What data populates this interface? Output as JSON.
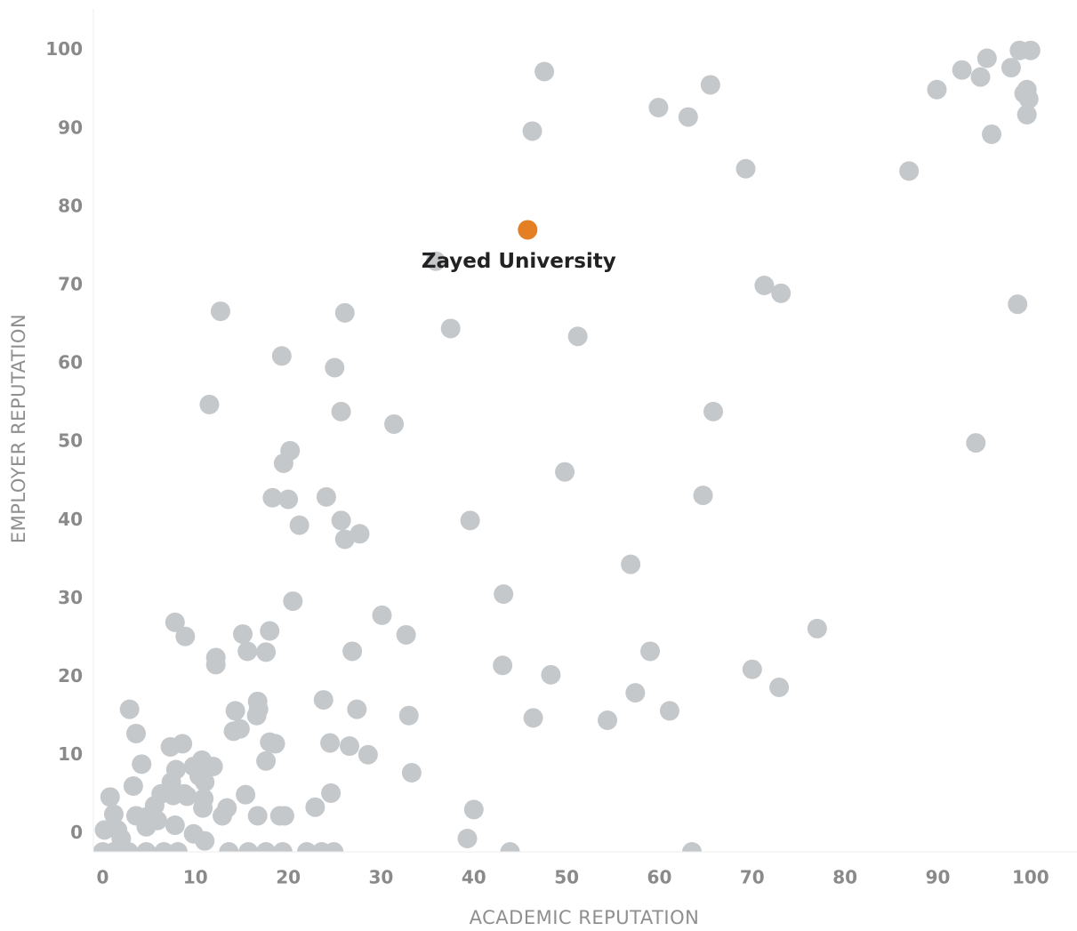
{
  "chart_data": {
    "type": "scatter",
    "x_label": "ACADEMIC REPUTATION",
    "y_label": "EMPLOYER REPUTATION",
    "color": "#c5c8cb",
    "xlim": [
      -1,
      105
    ],
    "ylim": [
      -2.3,
      105.3
    ],
    "xticks": [
      0,
      10,
      20,
      30,
      40,
      50,
      60,
      70,
      80,
      90,
      100
    ],
    "yticks": [
      0,
      10,
      20,
      30,
      40,
      50,
      60,
      70,
      80,
      90,
      100
    ],
    "grid": false,
    "x": [
      98.8,
      100,
      95.3,
      92.6,
      94.6,
      97.9,
      89.9,
      99.3,
      99.6,
      99.8,
      99.6,
      95.8,
      86.9,
      69.3,
      65.5,
      63.1,
      59.9,
      47.6,
      46.3,
      35.9,
      71.3,
      73.1,
      98.6,
      12.7,
      26.1,
      37.5,
      51.2,
      19.3,
      25,
      11.5,
      25.7,
      65.8,
      31.4,
      94.1,
      20.2,
      19.5,
      49.8,
      18.3,
      20,
      24.1,
      64.7,
      25.7,
      21.2,
      39.6,
      26.1,
      27.7,
      56.9,
      43.2,
      20.5,
      30.1,
      7.8,
      77,
      8.9,
      15.1,
      18,
      32.7,
      12.2,
      12.2,
      15.6,
      17.6,
      26.9,
      59,
      43.1,
      48.3,
      70,
      72.9,
      57.4,
      16.7,
      23.8,
      2.9,
      14.3,
      16.8,
      27.4,
      61.1,
      16.6,
      33,
      46.4,
      54.4,
      3.6,
      14.8,
      14.1,
      18,
      18.6,
      24.5,
      26.6,
      7.3,
      8.6,
      28.6,
      17.6,
      4.2,
      10.7,
      11.9,
      7.9,
      9.8,
      33.3,
      10.4,
      7.4,
      3.3,
      11,
      6.3,
      8.8,
      9.1,
      7.6,
      15.4,
      24.6,
      0.8,
      10.9,
      5.6,
      10.8,
      13.4,
      22.9,
      40,
      1.2,
      3.6,
      4.8,
      16.7,
      19.1,
      19.6,
      12.9,
      5.9,
      7.8,
      4.7,
      0.2,
      1.6,
      9.8,
      2,
      11,
      39.3,
      0,
      1.2,
      2.8,
      4.7,
      6.6,
      8.1,
      13.6,
      15.7,
      17.6,
      19.4,
      22,
      23.6,
      24.9,
      43.9,
      63.5
    ],
    "values": [
      100,
      100,
      99,
      97.5,
      96.6,
      97.8,
      95,
      94.5,
      95,
      93.8,
      91.8,
      89.3,
      84.6,
      84.9,
      95.6,
      91.5,
      92.7,
      97.3,
      89.7,
      73.1,
      70,
      69,
      67.6,
      66.7,
      66.5,
      64.5,
      63.5,
      61,
      59.5,
      54.8,
      53.9,
      53.9,
      52.3,
      49.9,
      48.9,
      47.3,
      46.2,
      42.9,
      42.7,
      43,
      43.2,
      40,
      39.4,
      40,
      37.6,
      38.3,
      34.4,
      30.6,
      29.7,
      27.9,
      27,
      26.2,
      25.2,
      25.5,
      25.9,
      25.4,
      22.5,
      21.6,
      23.3,
      23.2,
      23.3,
      23.3,
      21.5,
      20.3,
      21,
      18.7,
      18,
      16.9,
      17.1,
      15.9,
      15.7,
      15.9,
      15.9,
      15.7,
      15.1,
      15.1,
      14.8,
      14.5,
      12.8,
      13.4,
      13.1,
      11.7,
      11.5,
      11.6,
      11.2,
      11.1,
      11.5,
      10.1,
      9.3,
      8.9,
      9.4,
      8.6,
      8.2,
      8.6,
      7.8,
      7.4,
      6.6,
      6.1,
      6.6,
      5.1,
      5.1,
      4.8,
      4.9,
      5,
      5.2,
      4.7,
      4.5,
      3.6,
      3.3,
      3.3,
      3.4,
      3.1,
      2.5,
      2.3,
      2.2,
      2.3,
      2.3,
      2.3,
      2.3,
      1.7,
      1.1,
      0.9,
      0.5,
      0.5,
      0,
      -0.6,
      -0.9,
      -0.6,
      -2.3,
      -2.3,
      -2.3,
      -2.3,
      -2.3,
      -2.3,
      -2.3,
      -2.3,
      -2.3,
      -2.3,
      -2.3,
      -2.3,
      -2.3,
      -2.3,
      -2.3
    ],
    "annotations": [
      {
        "text": "Zayed University",
        "x": 45.8,
        "y": 77.1,
        "color": "#e57f23"
      }
    ]
  }
}
